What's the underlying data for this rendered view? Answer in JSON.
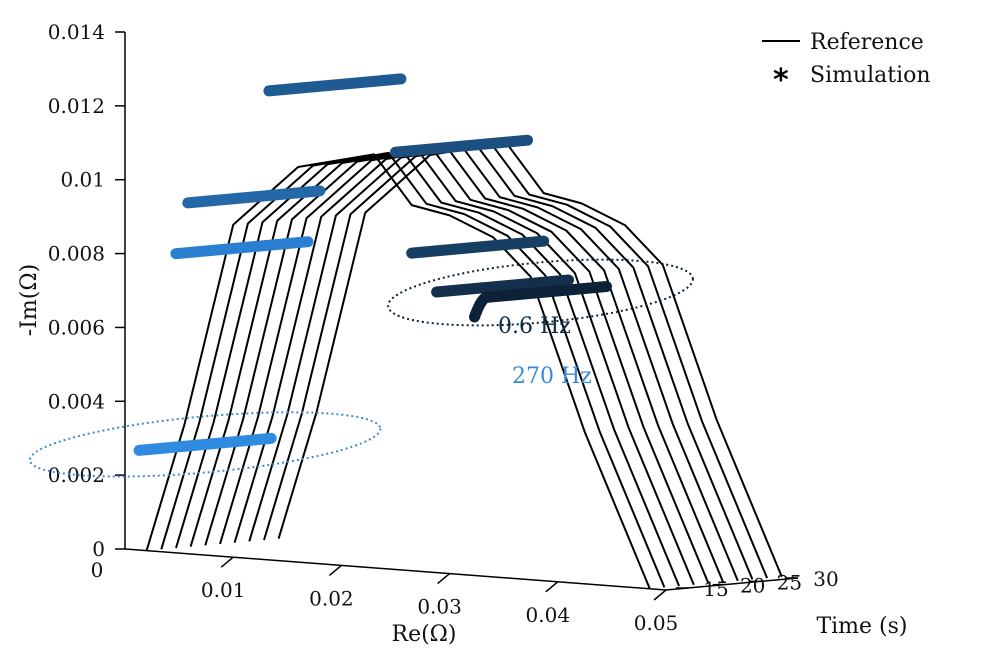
{
  "chart_data": {
    "type": "line",
    "title": "",
    "xlabel": "Re(Ω)",
    "ylabel": "-Im(Ω)",
    "zlabel": "Time (s)",
    "x_ticks": [
      "0",
      "0.01",
      "0.02",
      "0.03",
      "0.04",
      "0.05"
    ],
    "y_ticks": [
      "0",
      "0.002",
      "0.004",
      "0.006",
      "0.008",
      "0.01",
      "0.012",
      "0.014"
    ],
    "t_ticks": [
      "15",
      "20",
      "25",
      "30"
    ],
    "xlim": [
      0,
      0.05
    ],
    "ylim": [
      0,
      0.014
    ],
    "tlim": [
      12,
      30
    ],
    "grid": false,
    "legend_position": "top-right",
    "legend": [
      {
        "label": "Reference",
        "marker": "line",
        "color": "#000000"
      },
      {
        "label": "Simulation",
        "marker": "*",
        "color": "#000000"
      }
    ],
    "annotations": [
      {
        "text": "0.6 Hz",
        "color": "#0f2a45"
      },
      {
        "text": "270 Hz",
        "color": "#3a8ad6"
      }
    ],
    "time_slices": [
      12,
      14,
      16,
      18,
      20,
      22,
      24,
      26,
      28,
      30
    ],
    "reference_curve": {
      "re": [
        0.002,
        0.0055,
        0.01,
        0.016,
        0.023,
        0.0265,
        0.03,
        0.034,
        0.0375,
        0.0425,
        0.0485
      ],
      "im": [
        0.0,
        0.0035,
        0.009,
        0.0107,
        0.0112,
        0.0099,
        0.0097,
        0.0092,
        0.0082,
        0.0041,
        0.0
      ]
    },
    "series": [
      {
        "frequency_label": "270 Hz",
        "color": "#2f8be0",
        "re": 0.0013,
        "im": 0.0027
      },
      {
        "color": "#2a7fd0",
        "re": 0.0047,
        "im": 0.0081
      },
      {
        "color": "#2568a8",
        "re": 0.0058,
        "im": 0.0095
      },
      {
        "color": "#1f5a92",
        "re": 0.0133,
        "im": 0.0127
      },
      {
        "color": "#1c4f80",
        "re": 0.025,
        "im": 0.0113
      },
      {
        "color": "#173e63",
        "re": 0.0265,
        "im": 0.0086
      },
      {
        "color": "#142f4c",
        "re": 0.0288,
        "im": 0.0076
      },
      {
        "frequency_label": "0.6 Hz",
        "color": "#0d2238",
        "re": 0.0323,
        "im": 0.0075
      }
    ]
  }
}
